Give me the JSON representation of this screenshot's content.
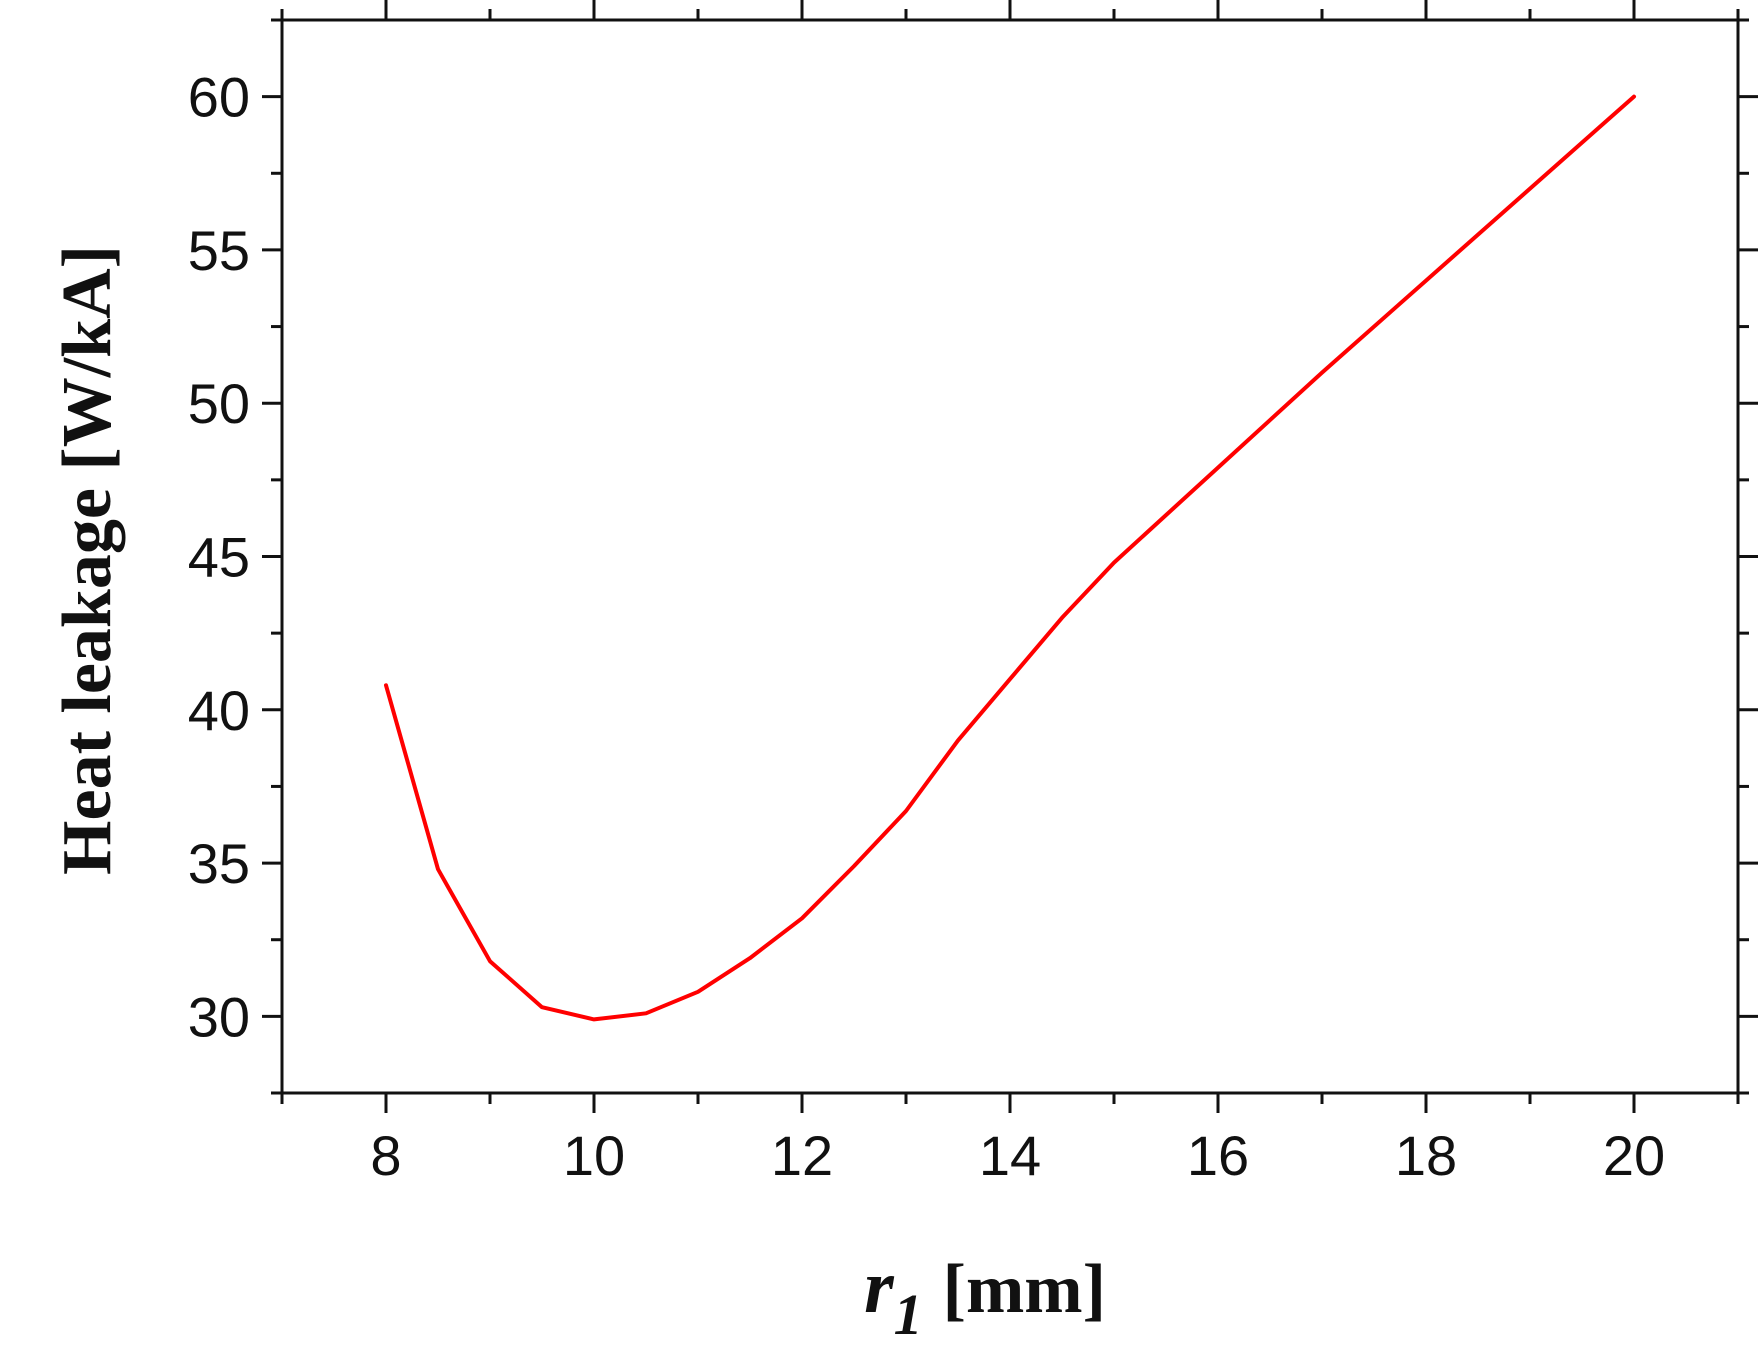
{
  "chart_data": {
    "type": "line",
    "xlabel_var": "r",
    "xlabel_sub": "1",
    "xlabel_unit": "[mm]",
    "ylabel": "Heat leakage  [W/kA]",
    "xlim": [
      7,
      21
    ],
    "ylim": [
      27.5,
      62.5
    ],
    "x_ticks": [
      8,
      10,
      12,
      14,
      16,
      18,
      20
    ],
    "y_ticks": [
      30,
      35,
      40,
      45,
      50,
      55,
      60
    ],
    "x_minor_step": 1,
    "y_minor_step": 2.5,
    "grid": false,
    "line_color": "#ff0000",
    "series": [
      {
        "x": [
          8,
          8.5,
          9,
          9.5,
          10,
          10.5,
          11,
          11.5,
          12,
          12.5,
          13,
          13.5,
          14,
          14.5,
          15,
          16,
          17,
          18,
          19,
          20
        ],
        "values": [
          40.8,
          34.8,
          31.8,
          30.3,
          29.9,
          30.1,
          30.8,
          31.9,
          33.2,
          34.9,
          36.7,
          39.0,
          41.0,
          43.0,
          44.8,
          47.9,
          51.0,
          54.0,
          57.0,
          60.0
        ]
      }
    ]
  }
}
